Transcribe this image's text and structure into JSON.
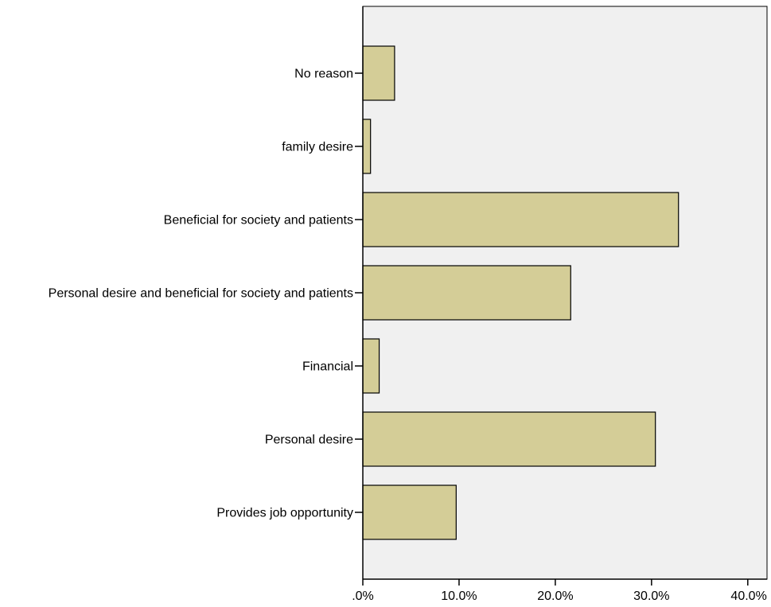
{
  "chart_data": {
    "type": "bar",
    "orientation": "horizontal",
    "title": "",
    "xlabel": "",
    "ylabel": "",
    "categories": [
      "No reason",
      "family desire",
      "Beneficial for society and patients",
      "Personal desire and beneficial for society and patients",
      "Financial",
      "Personal desire",
      "Provides job opportunity"
    ],
    "values": [
      3.3,
      0.8,
      32.8,
      21.6,
      1.7,
      30.4,
      9.7
    ],
    "unit": "%",
    "xlim": [
      0,
      42
    ],
    "xticks": [
      0,
      10,
      20,
      30,
      40
    ],
    "xtick_labels": [
      ".0%",
      "10.0%",
      "20.0%",
      "30.0%",
      "40.0%"
    ],
    "grid": false,
    "legend": "none",
    "colors": {
      "bar_fill": "#d4cd97",
      "bar_stroke": "#000000",
      "plot_background": "#f0f0f0",
      "axis": "#000000",
      "text": "#000000"
    }
  }
}
